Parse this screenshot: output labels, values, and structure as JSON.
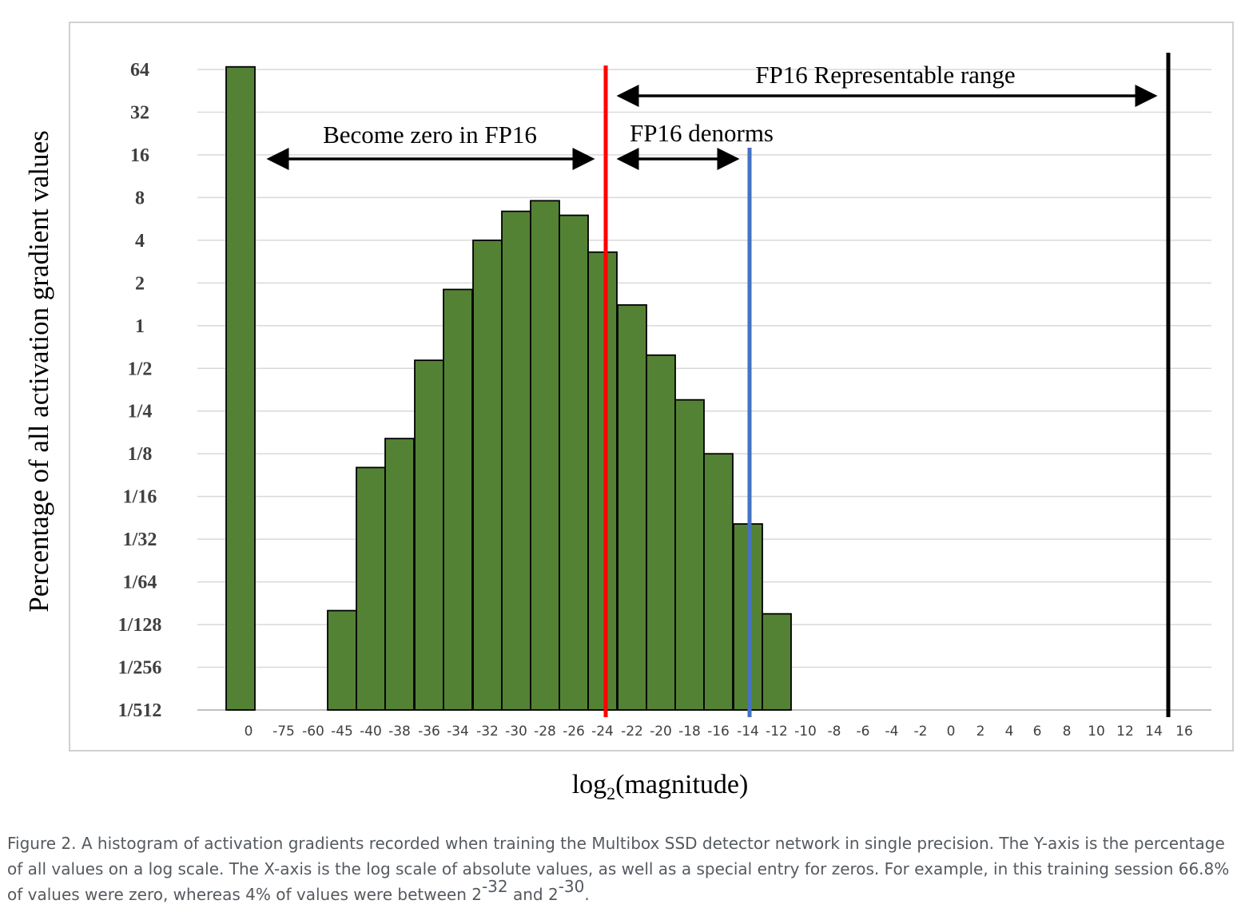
{
  "chart_data": {
    "type": "bar",
    "ylabel": "Percentage of all activation gradient values",
    "xlabel_base": "log",
    "xlabel_sub": "2",
    "xlabel_rest": "(magnitude)",
    "y_scale": "log2",
    "y_ticks": [
      "1/512",
      "1/256",
      "1/128",
      "1/64",
      "1/32",
      "1/16",
      "1/8",
      "1/4",
      "1/2",
      "1",
      "2",
      "4",
      "8",
      "16",
      "32",
      "64"
    ],
    "categories": [
      "0",
      "-75",
      "-60",
      "-45",
      "-40",
      "-38",
      "-36",
      "-34",
      "-32",
      "-30",
      "-28",
      "-26",
      "-24",
      "-22",
      "-20",
      "-18",
      "-16",
      "-14",
      "-12",
      "-10",
      "-8",
      "-6",
      "-4",
      "-2",
      "0",
      "2",
      "4",
      "6",
      "8",
      "10",
      "12",
      "14",
      "16"
    ],
    "values": [
      66.8,
      null,
      null,
      0.0098,
      0.1,
      0.16,
      0.57,
      1.8,
      4,
      6.4,
      7.6,
      6.0,
      3.3,
      1.4,
      0.62,
      0.3,
      0.125,
      0.04,
      0.0093,
      null,
      null,
      null,
      null,
      null,
      null,
      null,
      null,
      null,
      null,
      null,
      null,
      null,
      null
    ],
    "bar_color": "#548235",
    "grid": true,
    "markers": [
      {
        "name": "red-line",
        "position": -24,
        "color": "#ff0000"
      },
      {
        "name": "blue-line",
        "position": -14,
        "color": "#4472c4"
      },
      {
        "name": "black-line",
        "position": 15,
        "color": "#000000"
      }
    ],
    "annotations": [
      {
        "text": "Become zero in FP16",
        "from": "0",
        "to": -24
      },
      {
        "text": "FP16 denorms",
        "from": -24,
        "to": -14
      },
      {
        "text": "FP16 Representable range",
        "from": -24,
        "to": 15
      }
    ]
  },
  "caption": {
    "text": "Figure 2. A histogram of activation gradients recorded when training the Multibox SSD detector network in single precision. The Y-axis is the percentage of all values on a log scale. The X-axis is the log scale of absolute values, as well as a special entry for zeros. For example, in this training session 66.8% of values were zero, whereas 4% of values were between 2",
    "exp1": "-32",
    "mid": " and 2",
    "exp2": "-30",
    "end": "."
  }
}
